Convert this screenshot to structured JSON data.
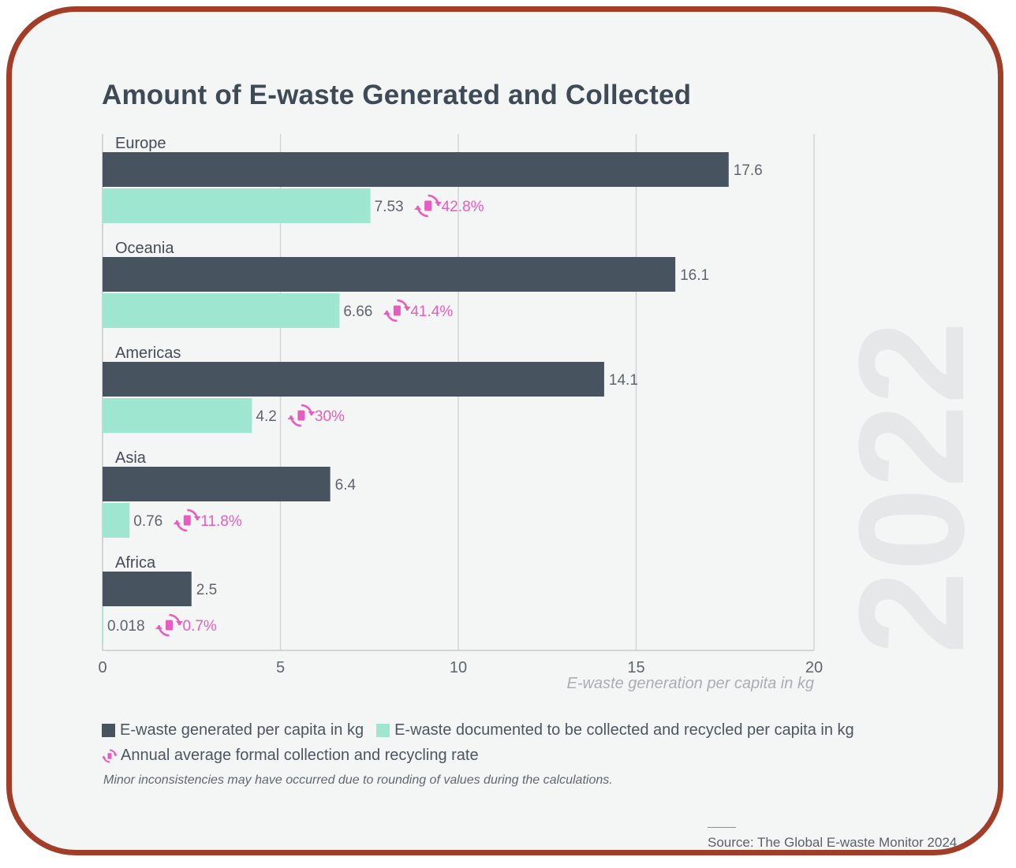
{
  "title": "Amount of E-waste Generated and Collected",
  "year": "2022",
  "chart_data": {
    "type": "bar",
    "orientation": "horizontal",
    "title": "Amount of E-waste Generated and Collected",
    "xlabel": "E-waste generation per capita in kg",
    "ylabel": "",
    "xlim": [
      0,
      20
    ],
    "x_ticks": [
      "0",
      "5",
      "10",
      "15",
      "20"
    ],
    "grid": true,
    "categories": [
      "Europe",
      "Oceania",
      "Americas",
      "Asia",
      "Africa"
    ],
    "series": [
      {
        "name": "E-waste generated per capita in kg",
        "color": "#47535f",
        "values": [
          17.6,
          16.1,
          14.1,
          6.4,
          2.5
        ],
        "labels": [
          "17.6",
          "16.1",
          "14.1",
          "6.4",
          "2.5"
        ]
      },
      {
        "name": "E-waste documented to be collected and recycled per capita in kg",
        "color": "#9ee6cf",
        "values": [
          7.53,
          6.66,
          4.2,
          0.76,
          0.018
        ],
        "labels": [
          "7.53",
          "6.66",
          "4.2",
          "0.76",
          "0.018"
        ]
      }
    ],
    "rates": {
      "name": "Annual average formal collection and recycling rate",
      "color": "#e85bbf",
      "values": [
        42.8,
        41.4,
        30,
        11.8,
        0.7
      ],
      "labels": [
        "42.8%",
        "41.4%",
        "30%",
        "11.8%",
        "0.7%"
      ]
    }
  },
  "legend": {
    "generated": "E-waste generated per capita in kg",
    "collected": "E-waste documented to be collected and recycled per capita in kg",
    "rate": "Annual average formal collection and recycling rate"
  },
  "note": "Minor inconsistencies may have occurred due to rounding of values during the calculations.",
  "source": "Source: The Global E-waste Monitor 2024",
  "colors": {
    "generated": "#47535f",
    "collected": "#9ee6cf",
    "rate": "#e85bbf",
    "frame": "#a23d28",
    "background": "#f4f5f5"
  },
  "icons": {
    "rate": "recycle-cycle-icon"
  }
}
